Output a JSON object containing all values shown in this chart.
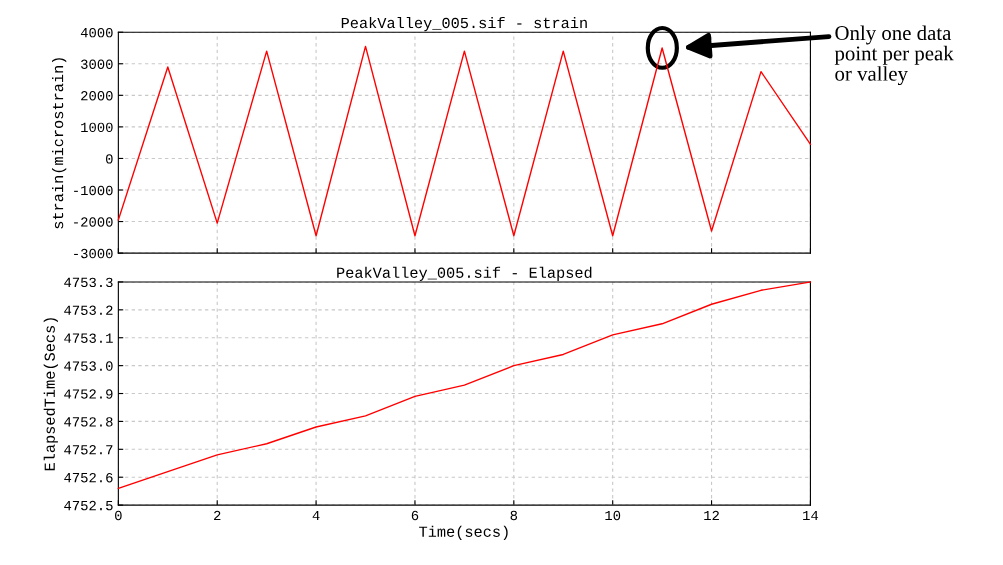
{
  "chart_data": [
    {
      "type": "line",
      "title": "PeakValley_005.sif - strain",
      "ylabel": "strain(microstrain)",
      "x": [
        0,
        1,
        2,
        3,
        4,
        5,
        6,
        7,
        8,
        9,
        10,
        11,
        12,
        13,
        14
      ],
      "series": [
        {
          "color": "#ff0000",
          "values": [
            -1950,
            2900,
            -2050,
            3400,
            -2450,
            3550,
            -2450,
            3400,
            -2450,
            3400,
            -2450,
            3500,
            -2300,
            2750,
            450
          ]
        }
      ],
      "xlim": [
        0,
        14
      ],
      "xticks": [
        0,
        2,
        4,
        6,
        8,
        10,
        12,
        14
      ],
      "ylim": [
        -3000,
        4000
      ],
      "yticks": [
        -3000,
        -2000,
        -1000,
        0,
        1000,
        2000,
        3000,
        4000
      ],
      "tick_labels": "y",
      "grid": true,
      "annotations": [
        "Only one data\npoint per peak\nor valley"
      ]
    },
    {
      "type": "line",
      "title": "PeakValley_005.sif - Elapsed",
      "xlabel": "Time(secs)",
      "ylabel": "ElapsedTime(Secs)",
      "x": [
        0,
        1,
        2,
        3,
        4,
        5,
        6,
        7,
        8,
        9,
        10,
        11,
        12,
        13,
        14
      ],
      "series": [
        {
          "color": "#ff0000",
          "values": [
            4752.56,
            4752.62,
            4752.68,
            4752.72,
            4752.78,
            4752.82,
            4752.89,
            4752.93,
            4753.0,
            4753.04,
            4753.11,
            4753.15,
            4753.22,
            4753.27,
            4753.3
          ]
        }
      ],
      "xlim": [
        0,
        14
      ],
      "xticks": [
        0,
        2,
        4,
        6,
        8,
        10,
        12,
        14
      ],
      "ylim": [
        4752.5,
        4753.3
      ],
      "yticks": [
        4752.5,
        4752.6,
        4752.7,
        4752.8,
        4752.9,
        {
          "value": 4753,
          "label": "4753.0"
        },
        4753.1,
        4753.2,
        4753.3
      ],
      "grid": true
    }
  ]
}
